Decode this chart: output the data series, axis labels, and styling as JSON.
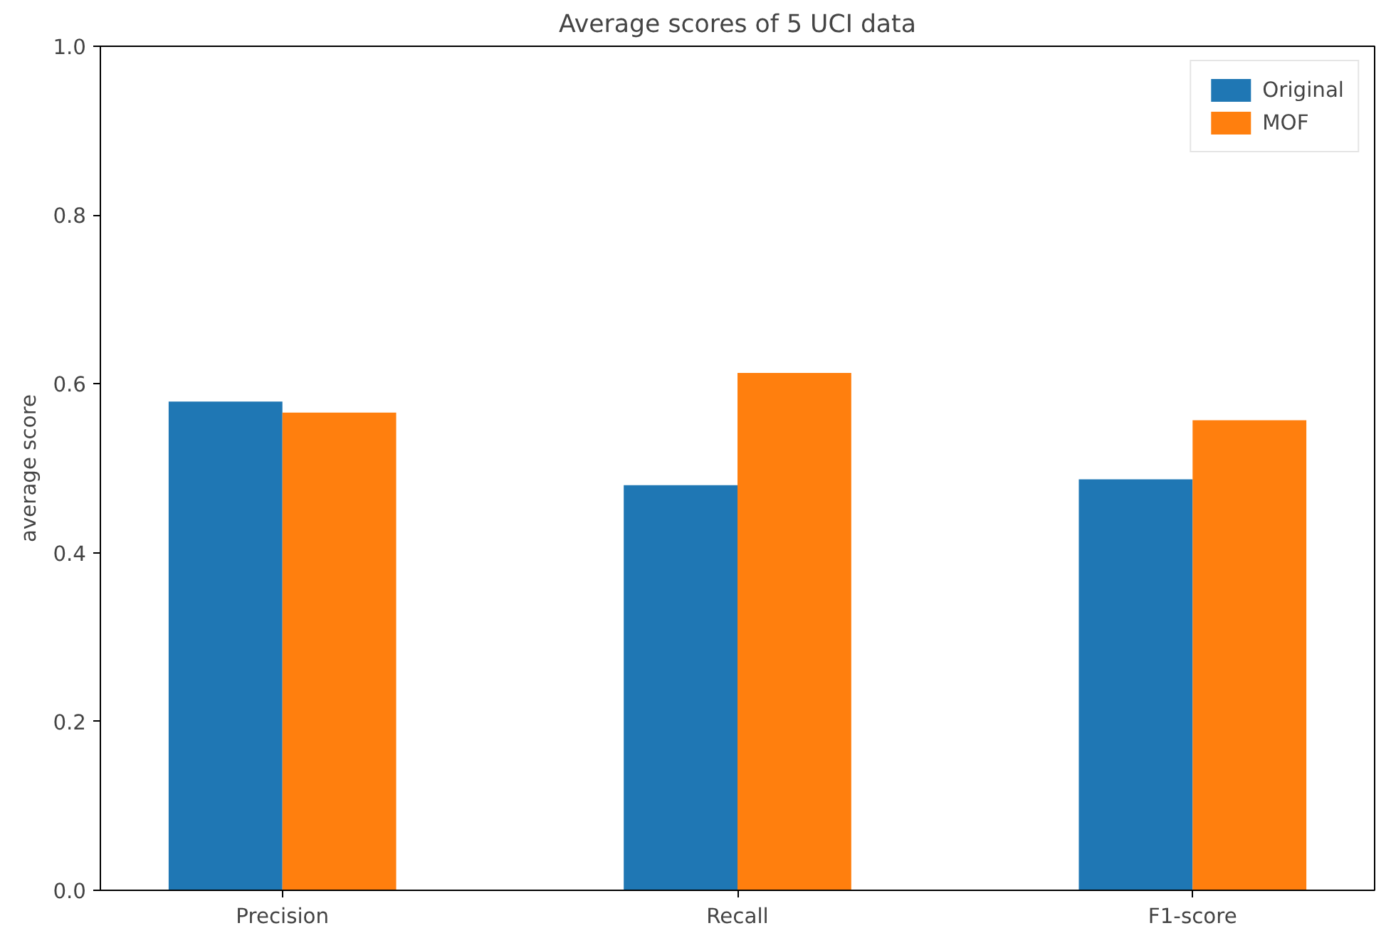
{
  "chart_data": {
    "type": "bar",
    "title": "Average scores of 5 UCI data",
    "ylabel": "average score",
    "categories": [
      "Precision",
      "Recall",
      "F1-score"
    ],
    "series": [
      {
        "name": "Original",
        "color": "#1f77b4",
        "values": [
          0.579,
          0.48,
          0.487
        ]
      },
      {
        "name": "MOF",
        "color": "#ff7f0e",
        "values": [
          0.566,
          0.613,
          0.557
        ]
      }
    ],
    "ylim": [
      0,
      1
    ],
    "yticks": [
      {
        "value": 0,
        "label": "0.0"
      },
      {
        "value": 0.2,
        "label": "0.2"
      },
      {
        "value": 0.4,
        "label": "0.4"
      },
      {
        "value": 0.6,
        "label": "0.6"
      },
      {
        "value": 0.8,
        "label": "0.8"
      },
      {
        "value": 1,
        "label": "1.0"
      }
    ],
    "grid": false,
    "legend": "top right"
  }
}
